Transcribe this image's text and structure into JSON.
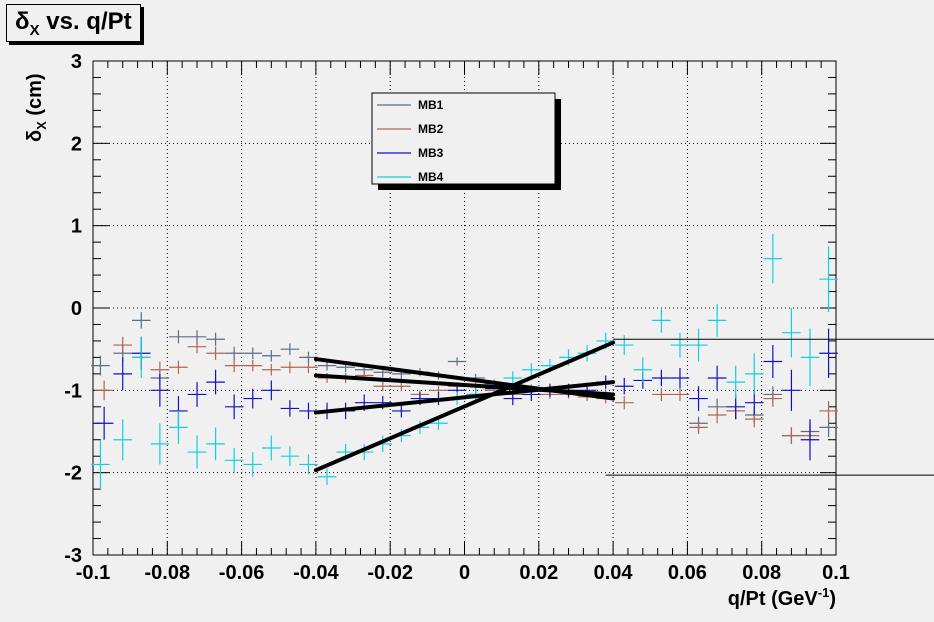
{
  "title": {
    "main": "δ",
    "sub": "X",
    "rest": " vs. q/Pt"
  },
  "chart_data": {
    "type": "scatter",
    "title": "δX vs. q/Pt",
    "xlabel": "q/Pt (GeV-1)",
    "ylabel": "δX (cm)",
    "xlim": [
      -0.1,
      0.1
    ],
    "ylim": [
      -3,
      3
    ],
    "xticks": [
      "-0.1",
      "-0.08",
      "-0.06",
      "-0.04",
      "-0.02",
      "0",
      "0.02",
      "0.04",
      "0.06",
      "0.08",
      "0.1"
    ],
    "yticks": [
      "-3",
      "-2",
      "-1",
      "0",
      "1",
      "2",
      "3"
    ],
    "grid": true,
    "legend_placement": "top-center",
    "xlabel_parts": {
      "main": "q/Pt (GeV",
      "sup": "-1",
      "close": ")"
    },
    "ylabel_parts": {
      "main": "δ",
      "sub": "X",
      "rest": " (cm)"
    },
    "series": [
      {
        "name": "MB1",
        "color": "#5a6e84",
        "points": [
          [
            -0.098,
            -0.7,
            0.12
          ],
          [
            -0.092,
            -0.55,
            0.1
          ],
          [
            -0.087,
            -0.15,
            0.1
          ],
          [
            -0.082,
            -0.85,
            0.1
          ],
          [
            -0.077,
            -0.35,
            0.08
          ],
          [
            -0.072,
            -0.35,
            0.08
          ],
          [
            -0.067,
            -0.38,
            0.08
          ],
          [
            -0.062,
            -0.55,
            0.08
          ],
          [
            -0.057,
            -0.55,
            0.07
          ],
          [
            -0.052,
            -0.58,
            0.07
          ],
          [
            -0.047,
            -0.5,
            0.07
          ],
          [
            -0.042,
            -0.6,
            0.07
          ],
          [
            -0.037,
            -0.7,
            0.06
          ],
          [
            -0.032,
            -0.72,
            0.06
          ],
          [
            -0.027,
            -0.75,
            0.06
          ],
          [
            -0.022,
            -0.78,
            0.06
          ],
          [
            -0.017,
            -0.8,
            0.06
          ],
          [
            -0.012,
            -0.78,
            0.05
          ],
          [
            -0.007,
            -0.82,
            0.05
          ],
          [
            -0.002,
            -0.65,
            0.05
          ],
          [
            0.003,
            -0.85,
            0.05
          ],
          [
            0.008,
            -0.92,
            0.05
          ],
          [
            0.013,
            -0.95,
            0.05
          ],
          [
            0.018,
            -0.98,
            0.05
          ],
          [
            0.023,
            -1.0,
            0.05
          ],
          [
            0.028,
            -1.02,
            0.05
          ],
          [
            0.033,
            -1.02,
            0.05
          ],
          [
            0.038,
            -1.05,
            0.06
          ],
          [
            0.063,
            -1.4,
            0.08
          ],
          [
            0.068,
            -1.2,
            0.1
          ],
          [
            0.073,
            -1.25,
            0.1
          ],
          [
            0.078,
            -1.3,
            0.1
          ],
          [
            0.083,
            -1.05,
            0.1
          ],
          [
            0.088,
            -1.55,
            0.1
          ],
          [
            0.093,
            -1.5,
            0.12
          ],
          [
            0.098,
            -1.45,
            0.12
          ]
        ]
      },
      {
        "name": "MB2",
        "color": "#b26452",
        "points": [
          [
            -0.097,
            -1.0,
            0.12
          ],
          [
            -0.092,
            -0.45,
            0.1
          ],
          [
            -0.087,
            -0.6,
            0.1
          ],
          [
            -0.082,
            -0.75,
            0.1
          ],
          [
            -0.077,
            -0.72,
            0.08
          ],
          [
            -0.072,
            -0.47,
            0.08
          ],
          [
            -0.067,
            -0.55,
            0.08
          ],
          [
            -0.062,
            -0.7,
            0.08
          ],
          [
            -0.057,
            -0.7,
            0.07
          ],
          [
            -0.052,
            -0.75,
            0.07
          ],
          [
            -0.047,
            -0.72,
            0.07
          ],
          [
            -0.042,
            -0.72,
            0.07
          ],
          [
            -0.037,
            -0.85,
            0.06
          ],
          [
            -0.032,
            -0.85,
            0.06
          ],
          [
            -0.027,
            -0.82,
            0.06
          ],
          [
            -0.022,
            -0.95,
            0.06
          ],
          [
            -0.017,
            -0.95,
            0.06
          ],
          [
            -0.012,
            -1.05,
            0.05
          ],
          [
            -0.007,
            -1.0,
            0.05
          ],
          [
            -0.002,
            -0.95,
            0.05
          ],
          [
            0.003,
            -0.95,
            0.05
          ],
          [
            0.008,
            -1.0,
            0.05
          ],
          [
            0.013,
            -1.05,
            0.05
          ],
          [
            0.018,
            -1.0,
            0.05
          ],
          [
            0.023,
            -1.05,
            0.05
          ],
          [
            0.028,
            -1.05,
            0.05
          ],
          [
            0.033,
            -1.08,
            0.05
          ],
          [
            0.038,
            -1.1,
            0.06
          ],
          [
            0.043,
            -1.15,
            0.08
          ],
          [
            0.053,
            -1.05,
            0.08
          ],
          [
            0.058,
            -1.05,
            0.08
          ],
          [
            0.063,
            -1.45,
            0.08
          ],
          [
            0.068,
            -1.3,
            0.1
          ],
          [
            0.073,
            -1.25,
            0.1
          ],
          [
            0.078,
            -1.35,
            0.1
          ],
          [
            0.083,
            -1.1,
            0.1
          ],
          [
            0.088,
            -1.55,
            0.1
          ],
          [
            0.093,
            -1.55,
            0.12
          ],
          [
            0.098,
            -1.25,
            0.12
          ]
        ]
      },
      {
        "name": "MB3",
        "color": "#1010c8",
        "points": [
          [
            -0.097,
            -1.4,
            0.2
          ],
          [
            -0.092,
            -0.8,
            0.2
          ],
          [
            -0.087,
            -0.55,
            0.2
          ],
          [
            -0.082,
            -1.0,
            0.2
          ],
          [
            -0.077,
            -1.25,
            0.18
          ],
          [
            -0.072,
            -1.05,
            0.15
          ],
          [
            -0.067,
            -0.9,
            0.15
          ],
          [
            -0.062,
            -1.2,
            0.15
          ],
          [
            -0.057,
            -1.1,
            0.12
          ],
          [
            -0.052,
            -1.0,
            0.12
          ],
          [
            -0.047,
            -1.22,
            0.1
          ],
          [
            -0.042,
            -1.25,
            0.1
          ],
          [
            -0.037,
            -1.25,
            0.1
          ],
          [
            -0.032,
            -1.25,
            0.1
          ],
          [
            -0.027,
            -1.15,
            0.1
          ],
          [
            -0.022,
            -1.15,
            0.08
          ],
          [
            -0.017,
            -1.25,
            0.08
          ],
          [
            -0.012,
            -1.1,
            0.08
          ],
          [
            -0.007,
            -1.1,
            0.08
          ],
          [
            -0.002,
            -1.0,
            0.08
          ],
          [
            0.003,
            -1.05,
            0.08
          ],
          [
            0.008,
            -0.98,
            0.08
          ],
          [
            0.013,
            -1.1,
            0.08
          ],
          [
            0.018,
            -1.05,
            0.08
          ],
          [
            0.023,
            -1.0,
            0.08
          ],
          [
            0.028,
            -1.0,
            0.08
          ],
          [
            0.033,
            -1.0,
            0.08
          ],
          [
            0.038,
            -0.9,
            0.08
          ],
          [
            0.043,
            -0.95,
            0.1
          ],
          [
            0.048,
            -0.88,
            0.1
          ],
          [
            0.053,
            -0.85,
            0.1
          ],
          [
            0.058,
            -0.85,
            0.12
          ],
          [
            0.063,
            -1.1,
            0.15
          ],
          [
            0.068,
            -0.85,
            0.15
          ],
          [
            0.073,
            -1.2,
            0.15
          ],
          [
            0.078,
            -1.15,
            0.15
          ],
          [
            0.083,
            -0.65,
            0.2
          ],
          [
            0.088,
            -1.0,
            0.25
          ],
          [
            0.093,
            -1.6,
            0.25
          ],
          [
            0.098,
            -0.55,
            0.3
          ]
        ]
      },
      {
        "name": "MB4",
        "color": "#10d0e0",
        "points": [
          [
            -0.098,
            -1.9,
            0.3
          ],
          [
            -0.092,
            -1.6,
            0.25
          ],
          [
            -0.087,
            -0.6,
            0.25
          ],
          [
            -0.082,
            -1.65,
            0.25
          ],
          [
            -0.077,
            -1.45,
            0.2
          ],
          [
            -0.072,
            -1.75,
            0.2
          ],
          [
            -0.067,
            -1.65,
            0.2
          ],
          [
            -0.062,
            -1.85,
            0.15
          ],
          [
            -0.057,
            -1.9,
            0.15
          ],
          [
            -0.052,
            -1.7,
            0.15
          ],
          [
            -0.047,
            -1.8,
            0.12
          ],
          [
            -0.042,
            -1.9,
            0.12
          ],
          [
            -0.037,
            -2.05,
            0.1
          ],
          [
            -0.032,
            -1.75,
            0.1
          ],
          [
            -0.027,
            -1.75,
            0.1
          ],
          [
            -0.022,
            -1.65,
            0.1
          ],
          [
            -0.017,
            -1.55,
            0.08
          ],
          [
            -0.012,
            -1.45,
            0.08
          ],
          [
            -0.007,
            -1.4,
            0.08
          ],
          [
            -0.002,
            -1.1,
            0.08
          ],
          [
            0.003,
            -1.05,
            0.08
          ],
          [
            0.008,
            -0.95,
            0.08
          ],
          [
            0.013,
            -0.85,
            0.08
          ],
          [
            0.018,
            -0.75,
            0.08
          ],
          [
            0.023,
            -0.7,
            0.08
          ],
          [
            0.028,
            -0.6,
            0.1
          ],
          [
            0.033,
            -0.55,
            0.1
          ],
          [
            0.038,
            -0.4,
            0.1
          ],
          [
            0.043,
            -0.45,
            0.12
          ],
          [
            0.048,
            -0.75,
            0.15
          ],
          [
            0.053,
            -0.15,
            0.15
          ],
          [
            0.058,
            -0.45,
            0.15
          ],
          [
            0.063,
            -0.45,
            0.2
          ],
          [
            0.068,
            -0.15,
            0.2
          ],
          [
            0.073,
            -0.9,
            0.2
          ],
          [
            0.078,
            -0.8,
            0.25
          ],
          [
            0.083,
            0.6,
            0.3
          ],
          [
            0.088,
            -0.3,
            0.3
          ],
          [
            0.093,
            -0.6,
            0.35
          ],
          [
            0.098,
            0.35,
            0.4
          ]
        ]
      }
    ],
    "fit_lines": [
      {
        "x": [
          -0.04,
          0.04
        ],
        "y": [
          -1.97,
          -0.42
        ]
      },
      {
        "x": [
          -0.04,
          0.04
        ],
        "y": [
          -1.27,
          -0.9
        ]
      },
      {
        "x": [
          -0.04,
          0.04
        ],
        "y": [
          -0.62,
          -1.1
        ]
      },
      {
        "x": [
          -0.04,
          0.04
        ],
        "y": [
          -0.82,
          -1.05
        ]
      }
    ]
  }
}
